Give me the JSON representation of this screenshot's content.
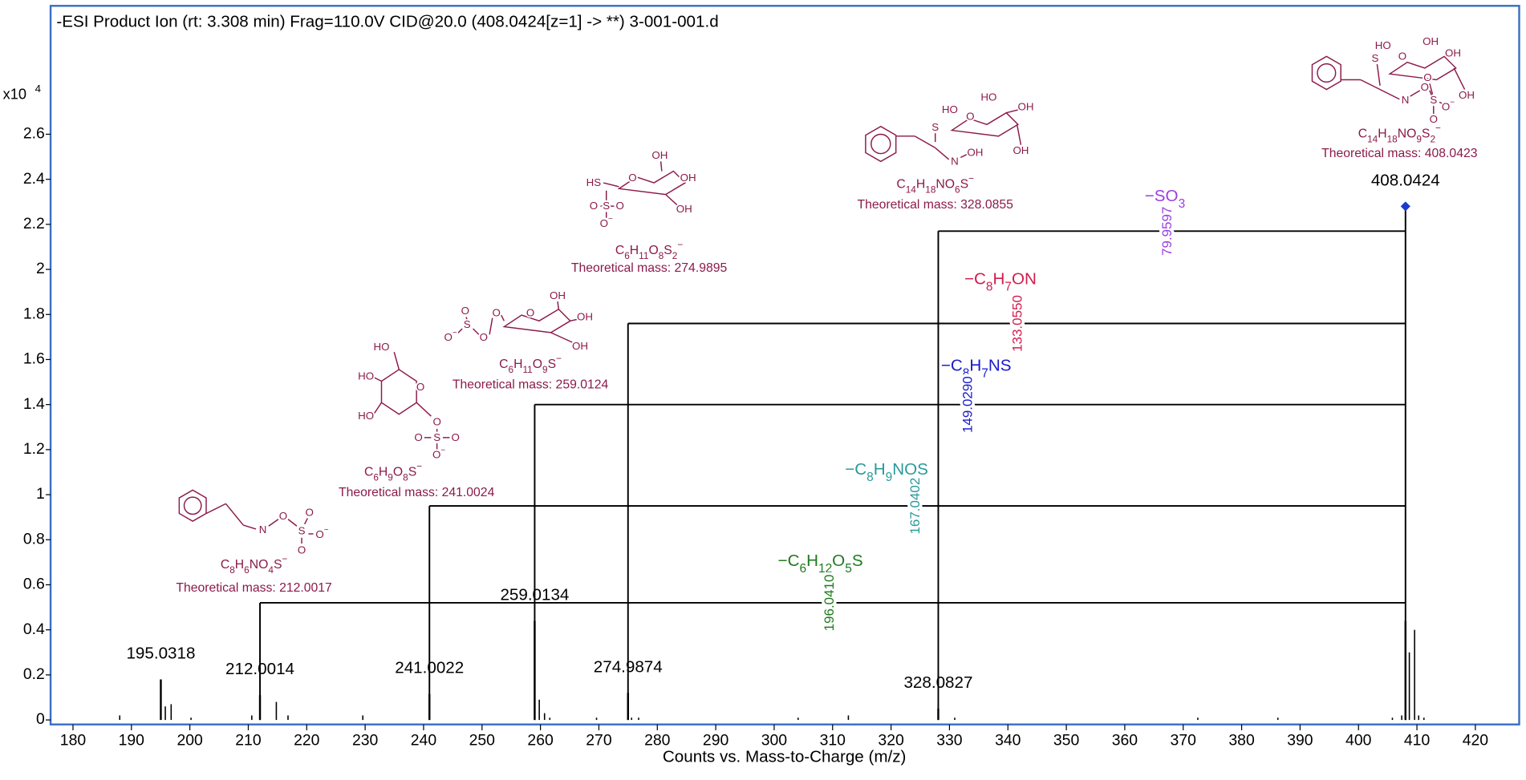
{
  "chart_data": {
    "type": "stick",
    "title": "-ESI Product Ion (rt: 3.308 min) Frag=110.0V CID@20.0 (408.0424[z=1] -> **) 3-001-001.d",
    "x_label": "Counts vs. Mass-to-Charge (m/z)",
    "y_unit_base": "x10",
    "y_unit_exponent": "4",
    "xlim": [
      176.17,
      427.5
    ],
    "ylim": [
      -0.02,
      3.17
    ],
    "xticks": [
      180,
      190,
      200,
      210,
      220,
      230,
      240,
      250,
      260,
      270,
      280,
      290,
      300,
      310,
      320,
      330,
      340,
      350,
      360,
      370,
      380,
      390,
      400,
      410,
      420
    ],
    "yticks": [
      0,
      0.2,
      0.4,
      0.6,
      0.8,
      1,
      1.2,
      1.4,
      1.6,
      1.8,
      2,
      2.2,
      2.4,
      2.6
    ],
    "grid": false,
    "color": "#000000",
    "frame_color": "#3a6fc4",
    "peaks": {
      "x": [
        188.0,
        195.0318,
        195.8,
        196.8,
        200.2,
        210.6,
        212.0014,
        214.8,
        216.8,
        229.6,
        241.0022,
        259.0134,
        259.8,
        260.7,
        261.6,
        269.6,
        274.9874,
        275.6,
        276.8,
        304.1,
        312.7,
        328.0827,
        330.9,
        372.5,
        386.2,
        405.8,
        407.4,
        408.0424,
        408.7,
        409.6,
        410.3,
        411.2
      ],
      "values": [
        0.02,
        0.18,
        0.06,
        0.07,
        0.01,
        0.02,
        0.11,
        0.08,
        0.02,
        0.02,
        0.115,
        0.44,
        0.09,
        0.03,
        0.01,
        0.01,
        0.12,
        0.01,
        0.01,
        0.01,
        0.02,
        0.05,
        0.01,
        0.01,
        0.01,
        0.01,
        0.02,
        0.44,
        0.3,
        0.4,
        0.02,
        0.01
      ],
      "labels": [
        null,
        "195.0318",
        null,
        null,
        null,
        null,
        "212.0014",
        null,
        null,
        null,
        "241.0022",
        "259.0134",
        null,
        null,
        null,
        null,
        "274.9874",
        null,
        null,
        null,
        null,
        "328.0827",
        null,
        null,
        null,
        null,
        null,
        "408.0424",
        null,
        null,
        null,
        null
      ]
    },
    "precursor": {
      "mz": 408.0424,
      "marker": 2.28,
      "marker_color": "#1a3ad0"
    },
    "annotations": [
      {
        "mz": 212.0014,
        "level": 0.52,
        "loss": "−C6H12O5S",
        "delta": "196.0410",
        "color": "#1e7b1e"
      },
      {
        "mz": 241.0022,
        "level": 0.95,
        "loss": "−C8H9NOS",
        "delta": "167.0402",
        "color": "#2a9a9a"
      },
      {
        "mz": 259.0134,
        "level": 1.4,
        "loss": "−C8H7NS",
        "delta": "149.0290",
        "color": "#1a1acc"
      },
      {
        "mz": 274.9874,
        "level": 1.76,
        "loss": "−C8H7ON",
        "delta": "133.0550",
        "color": "#d01e4e"
      },
      {
        "mz": 328.0827,
        "level": 2.17,
        "loss": "−SO3",
        "delta": "79.9597",
        "color": "#9a3ee0"
      }
    ],
    "structure_color": "#8b1a4a",
    "structures": [
      {
        "atoms": [
          "N",
          "O",
          "S",
          "O",
          "O−",
          "O"
        ],
        "formula": "C8H6NO4S−",
        "mass": "Theoretical mass: 212.0017"
      },
      {
        "atoms": [
          "HO",
          "HO",
          "HO",
          "O",
          "O",
          "O",
          "S",
          "O",
          "O−"
        ],
        "formula": "C6H9O8S−",
        "mass": "Theoretical mass: 241.0024"
      },
      {
        "atoms": [
          "O",
          "O−",
          "S",
          "O",
          "O",
          "O",
          "OH",
          "OH",
          "OH"
        ],
        "formula": "C6H11O9S−",
        "mass": "Theoretical mass: 259.0124"
      },
      {
        "atoms": [
          "HS",
          "O",
          "O",
          "S",
          "O",
          "O−",
          "OH",
          "OH",
          "OH"
        ],
        "formula": "C6H11O8S2−",
        "mass": "Theoretical mass: 274.9895"
      },
      {
        "atoms": [
          "S",
          "O",
          "HO",
          "HO",
          "OH",
          "OH",
          "N",
          "OH"
        ],
        "formula": "C14H18NO6S−",
        "mass": "Theoretical mass: 328.0855"
      },
      {
        "atoms": [
          "S",
          "O",
          "HO",
          "OH",
          "OH",
          "OH",
          "N",
          "O",
          "S",
          "O",
          "O−",
          "O"
        ],
        "formula": "C14H18NO9S2−",
        "mass": "Theoretical mass: 408.0423"
      }
    ]
  }
}
